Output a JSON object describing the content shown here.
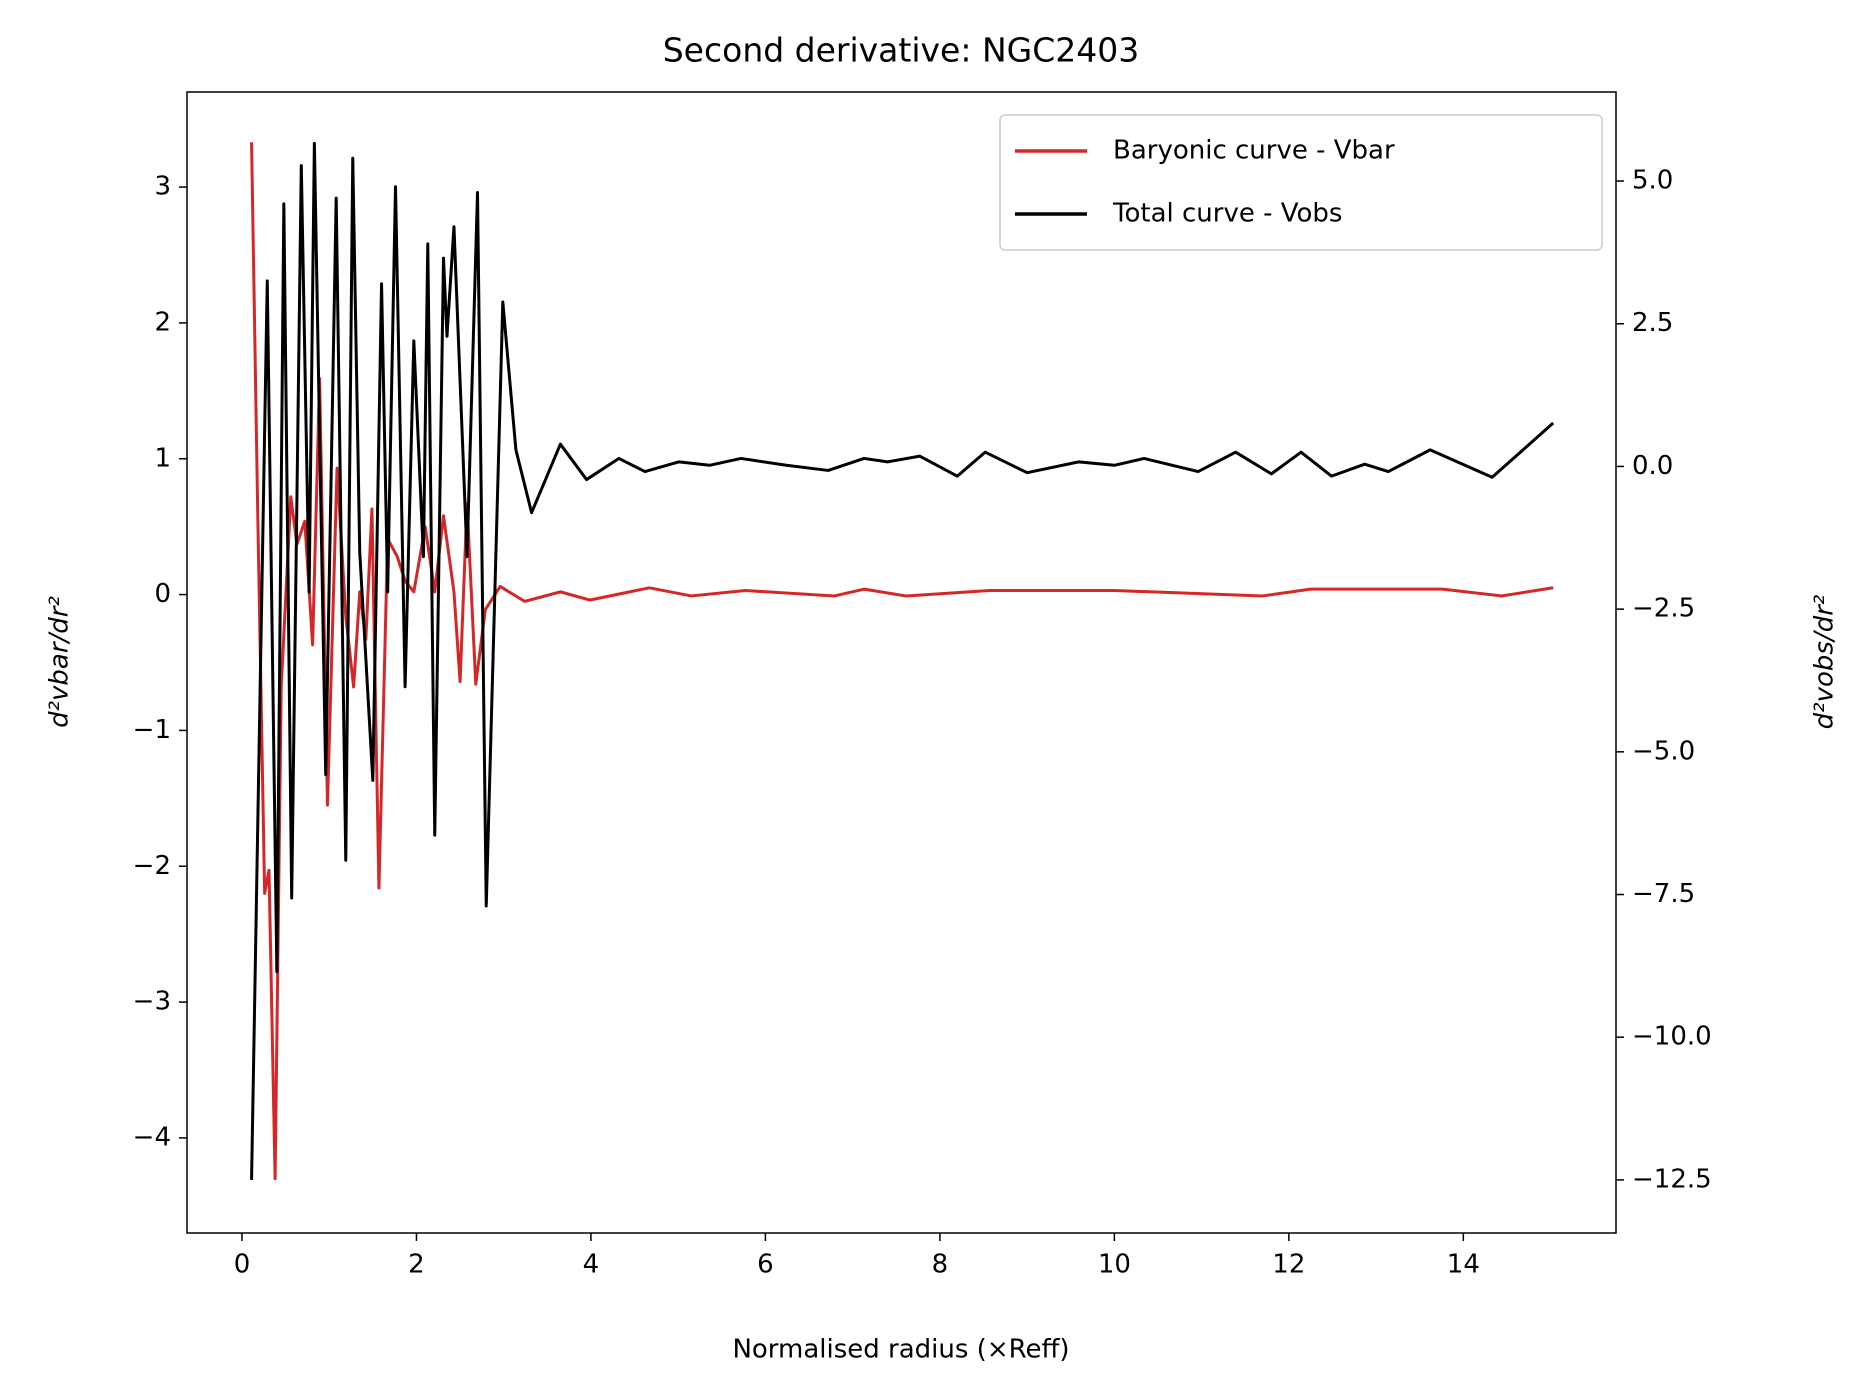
{
  "chart_data": {
    "type": "line",
    "title": "Second derivative: NGC2403",
    "x_label": "Normalised radius (×Reff)",
    "y_label": "d²vbar/dr²",
    "y2_label": "d²vobs/dr²",
    "y_label_color": "#d62728",
    "legend": "upper right",
    "xlim": [
      -0.63,
      15.75
    ],
    "xticks": [
      0,
      2,
      4,
      6,
      8,
      10,
      12,
      14
    ],
    "ylim": [
      -4.7,
      3.7
    ],
    "yticks": [
      {
        "value": -4,
        "label": "−4"
      },
      {
        "value": -3,
        "label": "−3"
      },
      {
        "value": -2,
        "label": "−2"
      },
      {
        "value": -1,
        "label": "−1"
      },
      0,
      1,
      2,
      3
    ],
    "y2lim": [
      -13.43,
      6.56
    ],
    "y2ticks": [
      {
        "value": -12.5,
        "label": "−12.5"
      },
      {
        "value": -10,
        "label": "−10.0"
      },
      {
        "value": -7.5,
        "label": "−7.5"
      },
      {
        "value": -5,
        "label": "−5.0"
      },
      {
        "value": -2.5,
        "label": "−2.5"
      },
      {
        "value": 0,
        "label": "0.0"
      },
      {
        "value": 2.5,
        "label": "2.5"
      },
      {
        "value": 5,
        "label": "5.0"
      }
    ],
    "series": [
      {
        "name": "Baryonic curve - Vbar",
        "color": "#d62728",
        "axis": "y",
        "x": [
          0.11,
          0.18,
          0.26,
          0.31,
          0.38,
          0.45,
          0.56,
          0.63,
          0.72,
          0.81,
          0.89,
          0.98,
          1.09,
          1.19,
          1.28,
          1.35,
          1.42,
          1.49,
          1.57,
          1.67,
          1.78,
          1.87,
          1.97,
          2.1,
          2.21,
          2.31,
          2.43,
          2.5,
          2.58,
          2.68,
          2.79,
          2.96,
          3.24,
          3.65,
          3.99,
          4.67,
          5.15,
          5.77,
          6.79,
          7.13,
          7.61,
          8.57,
          10.0,
          11.7,
          12.25,
          13.76,
          14.44,
          15.03
        ],
        "values": [
          3.33,
          0.63,
          -2.2,
          -2.03,
          -4.3,
          -0.68,
          0.72,
          0.37,
          0.54,
          -0.37,
          1.59,
          -1.55,
          0.93,
          -0.16,
          -0.68,
          0.02,
          -0.33,
          0.63,
          -2.16,
          0.41,
          0.28,
          0.1,
          0.02,
          0.5,
          0.02,
          0.58,
          0.02,
          -0.64,
          0.67,
          -0.66,
          -0.11,
          0.06,
          -0.05,
          0.02,
          -0.04,
          0.05,
          -0.01,
          0.03,
          -0.01,
          0.04,
          -0.01,
          0.03,
          0.03,
          -0.01,
          0.04,
          0.04,
          -0.01,
          0.05
        ]
      },
      {
        "name": "Total curve - Vobs",
        "color": "#000000",
        "axis": "y2",
        "x": [
          0.11,
          0.29,
          0.4,
          0.48,
          0.57,
          0.68,
          0.77,
          0.83,
          0.96,
          1.08,
          1.19,
          1.27,
          1.35,
          1.5,
          1.6,
          1.67,
          1.76,
          1.87,
          1.97,
          2.08,
          2.13,
          2.21,
          2.31,
          2.35,
          2.43,
          2.58,
          2.7,
          2.8,
          2.99,
          3.14,
          3.32,
          3.65,
          3.95,
          4.32,
          4.62,
          5.01,
          5.36,
          5.72,
          6.24,
          6.72,
          7.13,
          7.4,
          7.77,
          8.2,
          8.52,
          9.0,
          9.59,
          10.0,
          10.34,
          10.96,
          11.39,
          11.8,
          12.14,
          12.49,
          12.87,
          13.14,
          13.62,
          14.33,
          15.03
        ],
        "values": [
          -12.5,
          3.25,
          -8.85,
          4.6,
          -7.56,
          5.27,
          -2.2,
          5.66,
          -5.4,
          4.7,
          -6.9,
          5.4,
          -1.5,
          -5.5,
          3.2,
          -2.2,
          4.9,
          -3.86,
          2.2,
          -1.58,
          3.9,
          -6.46,
          3.65,
          2.28,
          4.2,
          -1.58,
          4.8,
          -7.7,
          2.88,
          0.29,
          -0.81,
          0.39,
          -0.23,
          0.14,
          -0.09,
          0.08,
          0.02,
          0.14,
          0.02,
          -0.07,
          0.14,
          0.08,
          0.18,
          -0.17,
          0.25,
          -0.11,
          0.08,
          0.02,
          0.14,
          -0.09,
          0.25,
          -0.13,
          0.25,
          -0.17,
          0.04,
          -0.09,
          0.29,
          -0.19,
          0.76
        ]
      }
    ]
  }
}
